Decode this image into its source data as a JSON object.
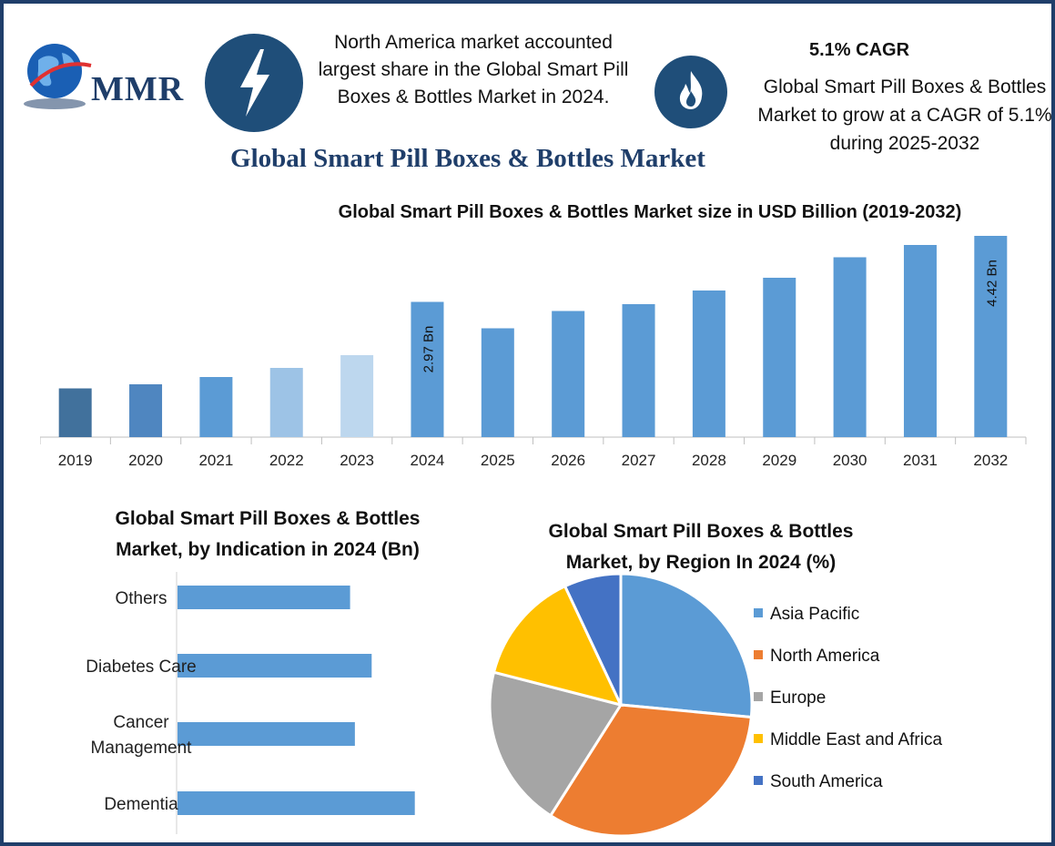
{
  "logo": {
    "text": "MMR"
  },
  "header": {
    "region_note": "North America market accounted largest share in the Global Smart Pill Boxes & Bottles Market in 2024.",
    "cagr_title": "5.1% CAGR",
    "cagr_description": "Global Smart Pill Boxes & Bottles Market to grow at a CAGR of 5.1% during 2025-2032",
    "icons": [
      "lightning-bolt-icon",
      "flame-icon"
    ]
  },
  "main_title": "Global Smart Pill Boxes & Bottles Market",
  "colors": {
    "navy": "#1f4e79",
    "bar_blue": "#5b9bd5",
    "asia_pacific": "#5b9bd5",
    "north_america": "#ed7d31",
    "europe": "#a5a5a5",
    "mea": "#ffc000",
    "south_america": "#4472c4"
  },
  "chart_data": [
    {
      "type": "bar",
      "title": "Global Smart Pill Boxes & Bottles Market size in USD Billion (2019-2032)",
      "categories": [
        "2019",
        "2020",
        "2021",
        "2022",
        "2023",
        "2024",
        "2025",
        "2026",
        "2027",
        "2028",
        "2029",
        "2030",
        "2031",
        "2032"
      ],
      "values": [
        1.07,
        1.16,
        1.32,
        1.52,
        1.8,
        2.97,
        2.39,
        2.77,
        2.92,
        3.22,
        3.5,
        3.95,
        4.22,
        4.42
      ],
      "bar_colors": [
        "#41719c",
        "#4f86c0",
        "#5b9bd5",
        "#9dc3e6",
        "#bdd7ee",
        "#5b9bd5",
        "#5b9bd5",
        "#5b9bd5",
        "#5b9bd5",
        "#5b9bd5",
        "#5b9bd5",
        "#5b9bd5",
        "#5b9bd5",
        "#5b9bd5"
      ],
      "data_labels": [
        {
          "category": "2024",
          "text": "2.97 Bn"
        },
        {
          "category": "2032",
          "text": "4.42 Bn"
        }
      ],
      "ylim": [
        0,
        4.6
      ],
      "grid": false
    },
    {
      "type": "bar",
      "orientation": "horizontal",
      "title": "Global Smart Pill Boxes & Bottles Market, by Indication in 2024 (Bn)",
      "title_lines": [
        "Global Smart Pill Boxes & Bottles",
        "Market, by Indication in 2024 (Bn)"
      ],
      "categories": [
        "Others",
        "Diabetes Care",
        "Cancer Management",
        "Dementia"
      ],
      "category_lines": [
        [
          "Others"
        ],
        [
          "Diabetes Care"
        ],
        [
          "Cancer",
          "Management"
        ],
        [
          "Dementia"
        ]
      ],
      "values": [
        0.72,
        0.81,
        0.74,
        0.99
      ],
      "xlim": [
        0,
        1.2
      ],
      "grid": false
    },
    {
      "type": "pie",
      "title": "Global Smart Pill Boxes & Bottles Market, by Region In 2024 (%)",
      "title_lines": [
        "Global Smart Pill Boxes & Bottles",
        "Market, by Region In 2024 (%)"
      ],
      "labels": [
        "Asia Pacific",
        "North America",
        "Europe",
        "Middle East and Africa",
        "South America"
      ],
      "values": [
        26.5,
        32.5,
        20,
        14,
        7
      ],
      "legend": "right"
    }
  ]
}
